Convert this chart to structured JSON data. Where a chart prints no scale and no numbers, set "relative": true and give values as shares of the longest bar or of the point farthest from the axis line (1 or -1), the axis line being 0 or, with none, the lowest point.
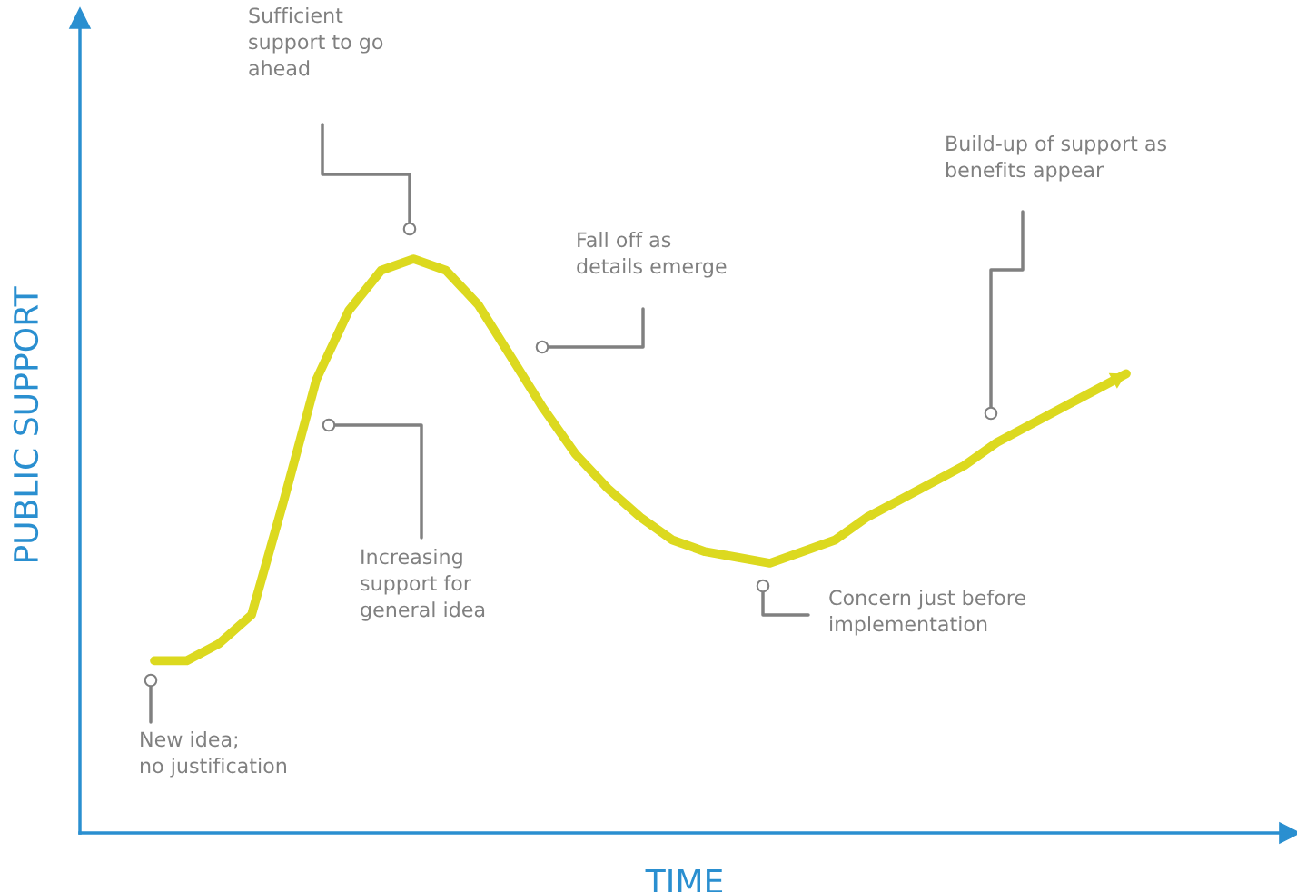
{
  "chart_data": {
    "type": "line",
    "relative": true,
    "xlabel": "TIME",
    "ylabel": "PUBLIC SUPPORT",
    "marker": "none",
    "line_style": "solid",
    "categories": [
      null,
      null,
      null,
      null,
      null,
      null,
      null,
      null,
      null,
      null,
      null,
      null,
      null,
      null,
      null,
      null,
      null,
      null,
      null,
      null,
      null,
      null,
      null,
      null,
      null,
      null,
      null,
      null,
      null,
      null,
      null
    ],
    "series": [
      {
        "color": "#dcd91f",
        "values": [
          0.3,
          0.3,
          0.33,
          0.38,
          0.58,
          0.79,
          0.91,
          0.98,
          1.0,
          0.98,
          0.92,
          0.83,
          0.74,
          0.66,
          0.6,
          0.55,
          0.51,
          0.49,
          0.48,
          0.47,
          0.49,
          0.51,
          0.55,
          0.58,
          0.61,
          0.64,
          0.68,
          0.71,
          0.74,
          0.77,
          0.8
        ]
      }
    ],
    "annotations": [
      "New idea;\nno justification",
      "Increasing\nsupport for\ngeneral idea",
      "Sufficient\nsupport to go\nahead",
      "Fall off as\ndetails emerge",
      "Concern just before\nimplementation",
      "Build-up of support as\nbenefits appear"
    ]
  }
}
